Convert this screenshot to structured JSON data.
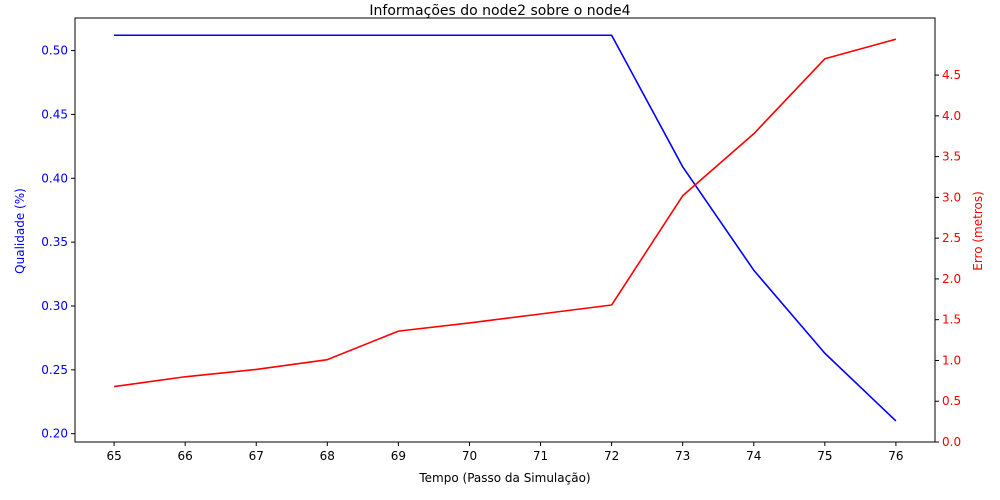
{
  "chart_data": {
    "type": "line",
    "title": "Informações do node2 sobre o node4",
    "xlabel": "Tempo (Passo da Simulação)",
    "x": [
      65,
      66,
      67,
      68,
      69,
      70,
      71,
      72,
      73,
      74,
      75,
      76
    ],
    "xlim": [
      64.45,
      76.55
    ],
    "x_ticks": [
      "65",
      "66",
      "67",
      "68",
      "69",
      "70",
      "71",
      "72",
      "73",
      "74",
      "75",
      "76"
    ],
    "grid": false,
    "legend": "none",
    "series": [
      {
        "axis": "left",
        "color": "#0000ff",
        "values": [
          0.512,
          0.512,
          0.512,
          0.512,
          0.512,
          0.512,
          0.512,
          0.512,
          0.409,
          0.328,
          0.263,
          0.21
        ]
      },
      {
        "axis": "right",
        "color": "#ff0000",
        "values": [
          0.68,
          0.8,
          0.89,
          1.01,
          1.36,
          1.46,
          1.57,
          1.68,
          3.02,
          3.78,
          4.7,
          4.94
        ]
      }
    ],
    "y_left": {
      "label": "Qualidade (%)",
      "color": "#0000ff",
      "lim": [
        0.1935,
        0.5255
      ],
      "ticks": [
        0.2,
        0.25,
        0.3,
        0.35,
        0.4,
        0.45,
        0.5
      ],
      "tick_labels": [
        "0.20",
        "0.25",
        "0.30",
        "0.35",
        "0.40",
        "0.45",
        "0.50"
      ]
    },
    "y_right": {
      "label": "Erro (metros)",
      "color": "#ff0000",
      "lim": [
        0,
        5.2
      ],
      "ticks": [
        0.0,
        0.5,
        1.0,
        1.5,
        2.0,
        2.5,
        3.0,
        3.5,
        4.0,
        4.5
      ],
      "tick_labels": [
        "0.0",
        "0.5",
        "1.0",
        "1.5",
        "2.0",
        "2.5",
        "3.0",
        "3.5",
        "4.0",
        "4.5"
      ]
    }
  }
}
